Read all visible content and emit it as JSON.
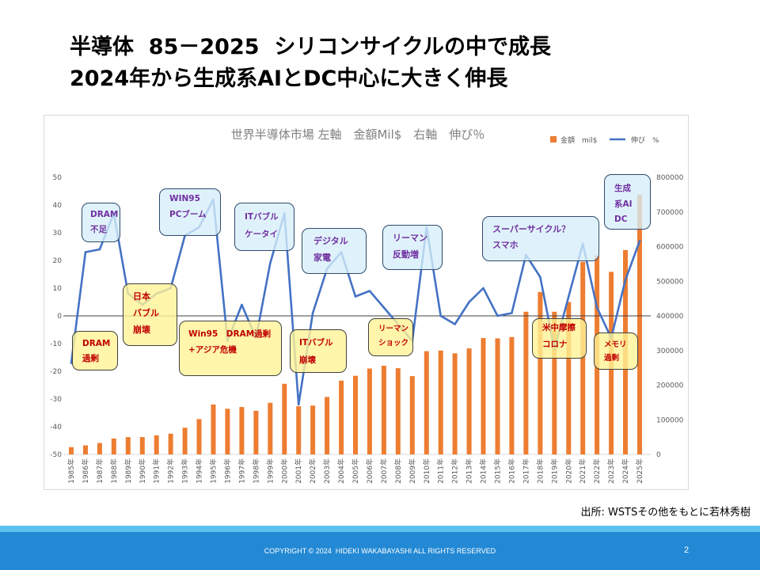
{
  "slide": {
    "title_line1": "半導体  85－2025  シリコンサイクルの中で成長",
    "title_line2": "2024年から生成系AIとDC中心に大きく伸長",
    "source": "出所: WSTSその他をもとに若林秀樹",
    "copyright": "COPYRIGHT © 2024  HIDEKI WAKABAYASHI ALL RIGHTS RESERVED",
    "page_number": "2"
  },
  "colors": {
    "bar": "#ED7D31",
    "line": "#4472C4"
  },
  "chart_data": {
    "type": "bar",
    "title": "世界半導体市場 左軸　金額Mil$　右軸　伸び％",
    "categories": [
      "1985年",
      "1986年",
      "1987年",
      "1988年",
      "1989年",
      "1990年",
      "1991年",
      "1992年",
      "1993年",
      "1994年",
      "1995年",
      "1996年",
      "1997年",
      "1998年",
      "1999年",
      "2000年",
      "2001年",
      "2002年",
      "2003年",
      "2004年",
      "2005年",
      "2006年",
      "2007年",
      "2008年",
      "2009年",
      "2010年",
      "2011年",
      "2012年",
      "2013年",
      "2014年",
      "2015年",
      "2016年",
      "2017年",
      "2018年",
      "2019年",
      "2020年",
      "2021年",
      "2022年",
      "2023年",
      "2024年",
      "2025年"
    ],
    "series": [
      {
        "name": "金額　mil$",
        "type": "bar",
        "axis": "right",
        "values": [
          21000,
          26000,
          33000,
          46000,
          50000,
          50000,
          55000,
          60000,
          77000,
          102000,
          144000,
          132000,
          137000,
          126000,
          149000,
          204000,
          139000,
          141000,
          166000,
          213000,
          227000,
          248000,
          256000,
          249000,
          226000,
          298000,
          300000,
          292000,
          306000,
          336000,
          335000,
          339000,
          412000,
          469000,
          412000,
          440000,
          556000,
          574000,
          527000,
          590000,
          750000
        ]
      },
      {
        "name": "伸び　%",
        "type": "line",
        "axis": "left",
        "values": [
          -17,
          23,
          24,
          37,
          8,
          4,
          8,
          10,
          29,
          32,
          42,
          -9,
          4,
          -8,
          19,
          37,
          -32,
          1,
          17,
          23,
          7,
          9,
          3,
          -3,
          -9,
          32,
          0,
          -3,
          5,
          10,
          0,
          1,
          22,
          14,
          -12,
          7,
          26,
          3,
          -8,
          13,
          27
        ]
      }
    ],
    "y_left": {
      "range": [
        -50,
        50
      ],
      "tick_labels": [
        "50",
        "40",
        "30",
        "20",
        "10",
        "0",
        "-10",
        "-20",
        "-30",
        "-40",
        "-50"
      ]
    },
    "y_right": {
      "range": [
        0,
        800000
      ],
      "tick_labels": [
        "800000",
        "700000",
        "600000",
        "500000",
        "400000",
        "300000",
        "200000",
        "100000",
        "0"
      ]
    },
    "legend": "top-right",
    "grid": false,
    "annotations": [
      {
        "lines": [
          "DRAM",
          "不足"
        ]
      },
      {
        "lines": [
          "DRAM",
          "過剰"
        ]
      },
      {
        "lines": [
          "日本",
          "バブル",
          "崩壊"
        ]
      },
      {
        "lines": [
          "WIN95",
          "PCブーム"
        ]
      },
      {
        "lines": [
          "Win95　DRAM過剰",
          "+アジア危機"
        ]
      },
      {
        "lines": [
          "ITバブル",
          "ケータイ"
        ]
      },
      {
        "lines": [
          "ITバブル",
          "崩壊"
        ]
      },
      {
        "lines": [
          "デジタル",
          "家電"
        ]
      },
      {
        "lines": [
          "リーマン",
          "ショック"
        ]
      },
      {
        "lines": [
          "リーマン",
          "反動増"
        ]
      },
      {
        "lines": [
          "スーパーサイクル？",
          "スマホ"
        ]
      },
      {
        "lines": [
          "米中摩擦",
          "コロナ"
        ]
      },
      {
        "lines": [
          "メモリ",
          "過剰"
        ]
      },
      {
        "lines": [
          "生成",
          "系AI",
          "DC"
        ]
      }
    ]
  }
}
